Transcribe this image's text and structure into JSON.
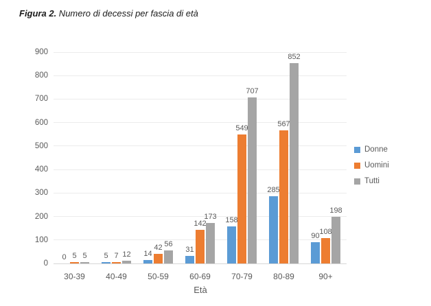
{
  "figure": {
    "title_prefix": "Figura 2.",
    "title_text": " Numero di decessi per fascia di età"
  },
  "chart_data": {
    "type": "bar",
    "title": "Figura 2. Numero di decessi per fascia di età",
    "categories": [
      "30-39",
      "40-49",
      "50-59",
      "60-69",
      "70-79",
      "80-89",
      "90+"
    ],
    "series": [
      {
        "name": "Donne",
        "color": "#5B9BD5",
        "values": [
          0,
          5,
          14,
          31,
          158,
          285,
          90
        ]
      },
      {
        "name": "Uomini",
        "color": "#ED7D31",
        "values": [
          5,
          7,
          42,
          142,
          549,
          567,
          108
        ]
      },
      {
        "name": "Tutti",
        "color": "#A5A5A5",
        "values": [
          5,
          12,
          56,
          173,
          707,
          852,
          198
        ]
      }
    ],
    "xlabel": "Età",
    "ylabel": "",
    "ylim": [
      0,
      900
    ],
    "ytick_step": 100,
    "grid": true,
    "data_labels": true,
    "legend_position": "right"
  },
  "colors": {
    "axis_text": "#595959",
    "gridline": "#ececec",
    "axis_line": "#d6d6d6",
    "background": "#ffffff"
  }
}
